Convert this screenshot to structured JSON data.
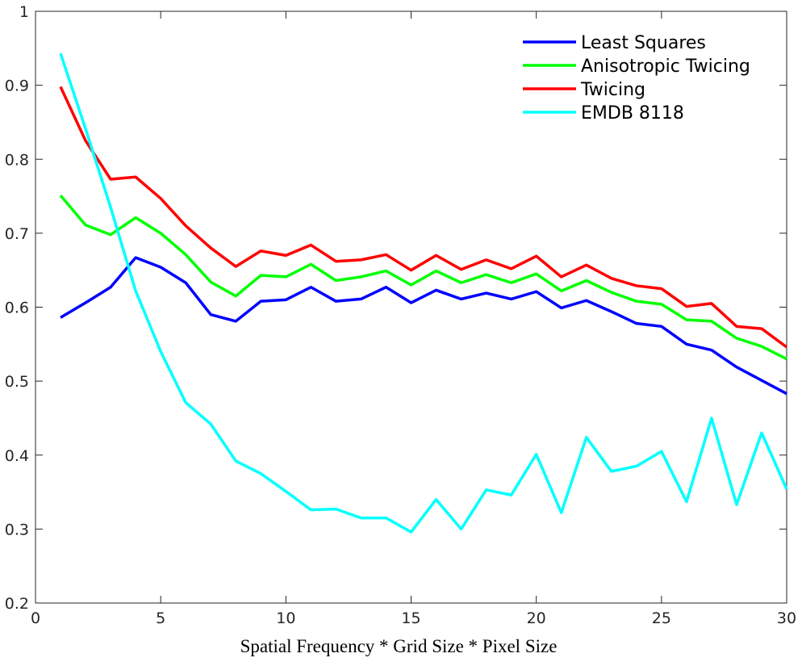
{
  "chart_data": {
    "type": "line",
    "title": "",
    "xlabel": "Spatial Frequency * Grid Size * Pixel Size",
    "ylabel": "",
    "xlim": [
      0,
      30
    ],
    "ylim": [
      0.2,
      1
    ],
    "xticks": [
      0,
      5,
      10,
      15,
      20,
      25,
      30
    ],
    "yticks": [
      0.2,
      0.3,
      0.4,
      0.5,
      0.6,
      0.7,
      0.8,
      0.9,
      1
    ],
    "xtick_labels": [
      "0",
      "5",
      "10",
      "15",
      "20",
      "25",
      "30"
    ],
    "ytick_labels": [
      "0.2",
      "0.3",
      "0.4",
      "0.5",
      "0.6",
      "0.7",
      "0.8",
      "0.9",
      "1"
    ],
    "grid": false,
    "legend_position": "top-right",
    "x": [
      1,
      2,
      3,
      4,
      5,
      6,
      7,
      8,
      9,
      10,
      11,
      12,
      13,
      14,
      15,
      16,
      17,
      18,
      19,
      20,
      21,
      22,
      23,
      24,
      25,
      26,
      27,
      28,
      29,
      30
    ],
    "series": [
      {
        "name": "Least Squares",
        "color": "#0000ff",
        "values": [
          0.586,
          0.606,
          0.627,
          0.667,
          0.654,
          0.633,
          0.59,
          0.581,
          0.608,
          0.61,
          0.627,
          0.608,
          0.611,
          0.627,
          0.606,
          0.623,
          0.611,
          0.619,
          0.611,
          0.621,
          0.599,
          0.609,
          0.594,
          0.578,
          0.574,
          0.55,
          0.542,
          0.519,
          0.501,
          0.483
        ]
      },
      {
        "name": "Anisotropic Twicing",
        "color": "#00ff00",
        "values": [
          0.751,
          0.711,
          0.698,
          0.721,
          0.7,
          0.671,
          0.634,
          0.615,
          0.643,
          0.641,
          0.658,
          0.636,
          0.641,
          0.649,
          0.63,
          0.649,
          0.633,
          0.644,
          0.633,
          0.645,
          0.622,
          0.636,
          0.62,
          0.608,
          0.604,
          0.583,
          0.581,
          0.558,
          0.547,
          0.53
        ]
      },
      {
        "name": "Twicing",
        "color": "#ff0000",
        "values": [
          0.898,
          0.825,
          0.773,
          0.776,
          0.747,
          0.71,
          0.68,
          0.655,
          0.676,
          0.67,
          0.684,
          0.662,
          0.664,
          0.671,
          0.65,
          0.67,
          0.651,
          0.664,
          0.652,
          0.669,
          0.641,
          0.657,
          0.639,
          0.629,
          0.625,
          0.601,
          0.605,
          0.574,
          0.571,
          0.546
        ]
      },
      {
        "name": "EMDB 8118",
        "color": "#00ffff",
        "values": [
          0.943,
          0.841,
          0.735,
          0.622,
          0.54,
          0.471,
          0.442,
          0.392,
          0.375,
          0.351,
          0.326,
          0.327,
          0.315,
          0.315,
          0.296,
          0.34,
          0.3,
          0.353,
          0.346,
          0.401,
          0.322,
          0.424,
          0.378,
          0.385,
          0.405,
          0.337,
          0.45,
          0.333,
          0.43,
          0.354
        ]
      }
    ]
  }
}
